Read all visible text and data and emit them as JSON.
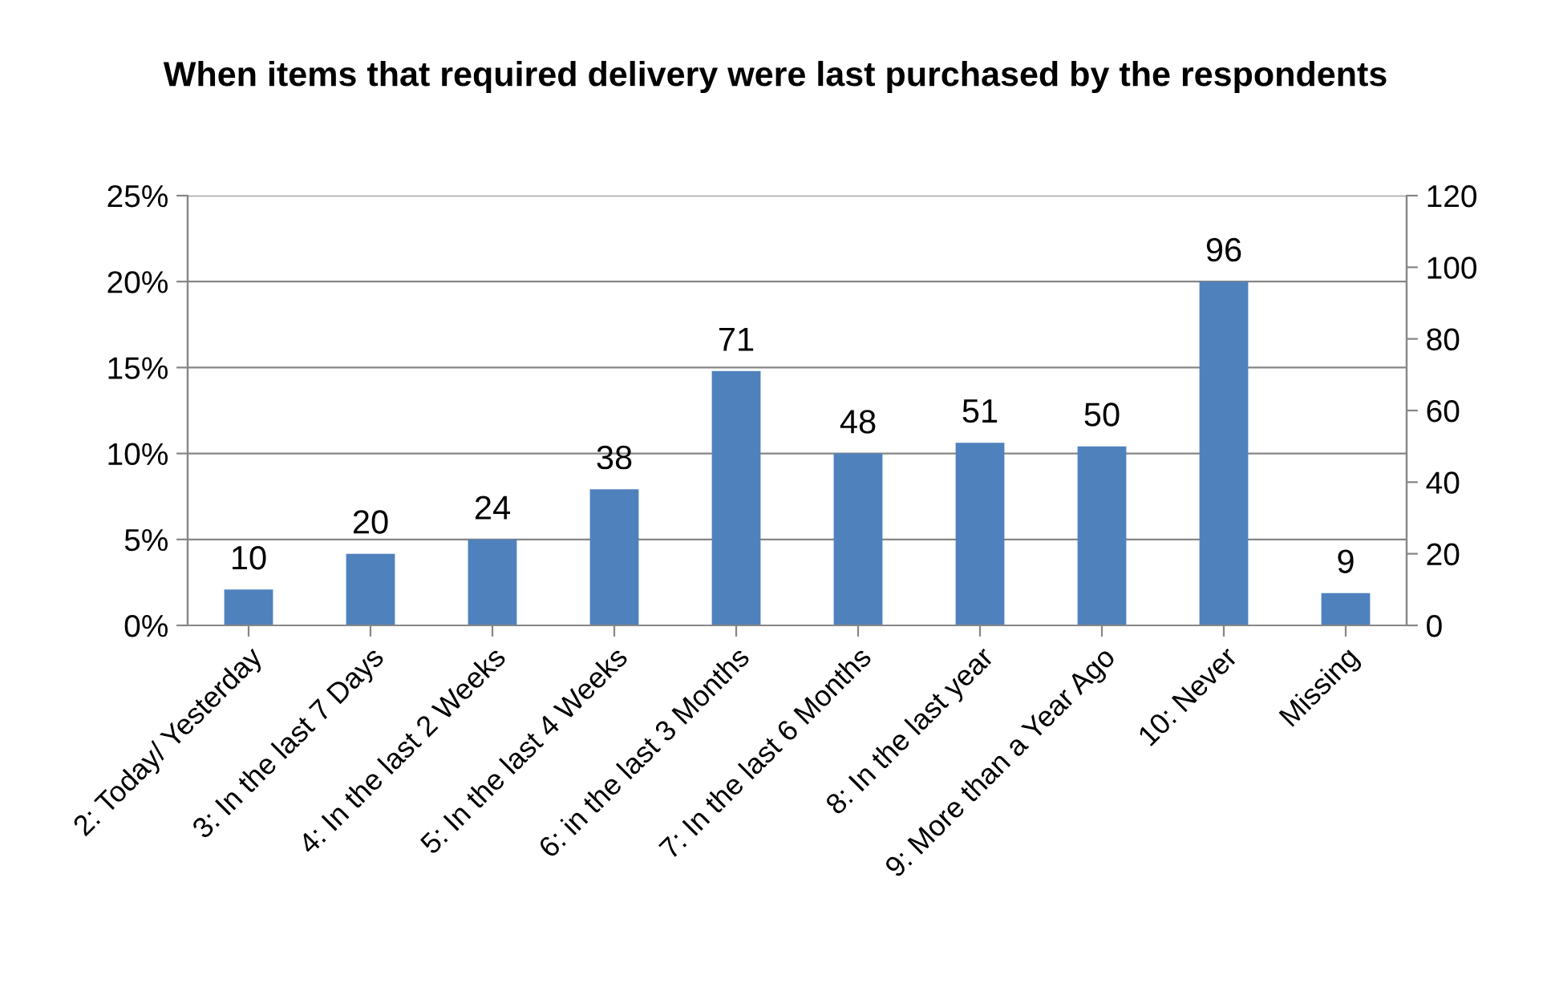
{
  "chart_data": {
    "type": "bar",
    "title": "When items that required delivery were last purchased by the respondents",
    "categories": [
      "2: Today/ Yesterday",
      "3: In the last 7 Days",
      "4: In the last 2 Weeks",
      "5: In the last 4 Weeks",
      "6: in the last 3 Months",
      "7: In the last 6 Months",
      "8: In the last year",
      "9: More than a Year Ago",
      "10: Never",
      "Missing"
    ],
    "series": [
      {
        "color": "#4f81bd",
        "axis": "y2",
        "values": [
          10,
          20,
          24,
          38,
          71,
          48,
          51,
          50,
          96,
          9
        ]
      }
    ],
    "ylim": [
      0,
      25
    ],
    "yticks": [
      {
        "value": 0,
        "label": "0%"
      },
      {
        "value": 5,
        "label": "5%"
      },
      {
        "value": 10,
        "label": "10%"
      },
      {
        "value": 15,
        "label": "15%"
      },
      {
        "value": 20,
        "label": "20%"
      },
      {
        "value": 25,
        "label": "25%"
      }
    ],
    "y2lim": [
      0,
      120
    ],
    "y2ticks": [
      0,
      20,
      40,
      60,
      80,
      100,
      120
    ],
    "grid": "y",
    "data_labels": true
  }
}
